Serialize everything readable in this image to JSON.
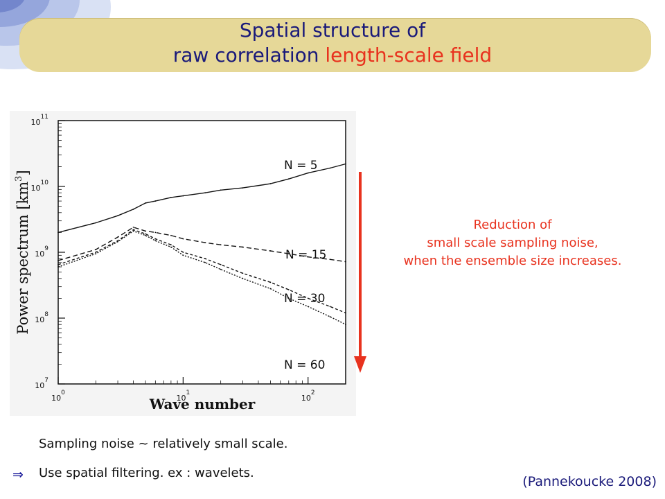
{
  "title": {
    "line1": "Spatial structure of",
    "line2_plain": "raw correlation ",
    "line2_accent": "length-scale field"
  },
  "colors": {
    "title": "#1a1a7a",
    "accent": "#e8321e",
    "banner": "#e6d898"
  },
  "chart_data": {
    "type": "line",
    "ylabel": "Power spectrum [km",
    "ylabel_exponent": "3",
    "ylabel_close": "]",
    "xlabel": "Wave number",
    "xscale": "log",
    "yscale": "log",
    "xlim": [
      1,
      200
    ],
    "ylim": [
      10000000,
      100000000000
    ],
    "yticks": [
      {
        "base": "10",
        "exp": "7",
        "value": 10000000
      },
      {
        "base": "10",
        "exp": "8",
        "value": 100000000
      },
      {
        "base": "10",
        "exp": "9",
        "value": 1000000000
      },
      {
        "base": "10",
        "exp": "10",
        "value": 10000000000
      },
      {
        "base": "10",
        "exp": "11",
        "value": 100000000000
      }
    ],
    "xticks": [
      {
        "base": "10",
        "exp": "0",
        "value": 1
      },
      {
        "base": "10",
        "exp": "1",
        "value": 10
      },
      {
        "base": "10",
        "exp": "2",
        "value": 100
      }
    ],
    "x": [
      1,
      2,
      3,
      4,
      5,
      6,
      8,
      10,
      15,
      20,
      30,
      50,
      70,
      100,
      150,
      200
    ],
    "series": [
      {
        "name": "N = 5",
        "values": [
          2000000000.0,
          2800000000.0,
          3600000000.0,
          4500000000.0,
          5600000000.0,
          6000000000.0,
          6800000000.0,
          7200000000.0,
          8000000000.0,
          8800000000.0,
          9500000000.0,
          11000000000.0,
          13000000000.0,
          16000000000.0,
          19000000000.0,
          22000000000.0
        ]
      },
      {
        "name": "N = 15",
        "values": [
          750000000.0,
          1100000000.0,
          1700000000.0,
          2400000000.0,
          2100000000.0,
          2000000000.0,
          1800000000.0,
          1600000000.0,
          1400000000.0,
          1300000000.0,
          1200000000.0,
          1050000000.0,
          950000000.0,
          850000000.0,
          780000000.0,
          720000000.0
        ]
      },
      {
        "name": "N = 30",
        "values": [
          650000000.0,
          1000000000.0,
          1500000000.0,
          2200000000.0,
          1900000000.0,
          1600000000.0,
          1300000000.0,
          1000000000.0,
          800000000.0,
          650000000.0,
          480000000.0,
          350000000.0,
          270000000.0,
          200000000.0,
          150000000.0,
          120000000.0
        ]
      },
      {
        "name": "N = 60",
        "values": [
          600000000.0,
          950000000.0,
          1450000000.0,
          2100000000.0,
          1800000000.0,
          1500000000.0,
          1200000000.0,
          900000000.0,
          700000000.0,
          550000000.0,
          400000000.0,
          280000000.0,
          200000000.0,
          150000000.0,
          105000000.0,
          80000000.0
        ]
      }
    ],
    "legend": "inline labels",
    "grid": false
  },
  "annotation": {
    "line1": "Reduction of",
    "line2": "small scale sampling noise,",
    "line3": "when the ensemble size increases."
  },
  "notes": {
    "line1": "Sampling noise ~ relatively small scale.",
    "line2": "Use spatial filtering. ex : wavelets."
  },
  "citation": "(Pannekoucke 2008)"
}
